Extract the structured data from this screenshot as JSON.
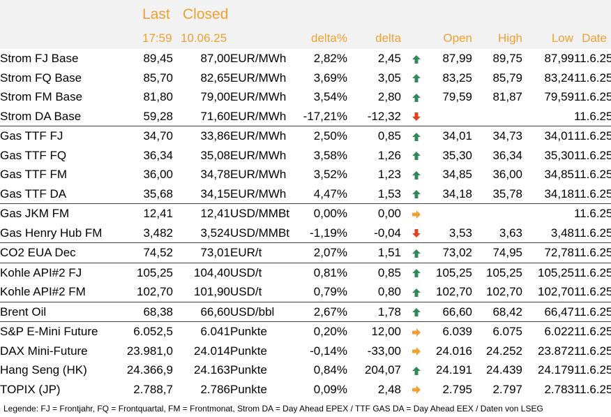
{
  "header": {
    "last_label": "Last",
    "closed_label": "Closed",
    "last_time": "17:59",
    "closed_date": "10.06.25",
    "delta_pct": "delta%",
    "delta": "delta",
    "open": "Open",
    "high": "High",
    "low": "Low",
    "date": "Date"
  },
  "colors": {
    "header_accent": "#f0a030",
    "up": "#2e8b57",
    "down": "#e0441e",
    "flat": "#f0a030"
  },
  "rows": [
    {
      "name": "Strom FJ Base",
      "last": "89,45",
      "closed": "87,00",
      "unit": "EUR/MWh",
      "delta_pct": "2,82%",
      "delta": "2,45",
      "trend": "up",
      "open": "87,99",
      "high": "89,75",
      "low": "87,99",
      "date": "11.6.25"
    },
    {
      "name": "Strom FQ Base",
      "last": "85,70",
      "closed": "82,65",
      "unit": "EUR/MWh",
      "delta_pct": "3,69%",
      "delta": "3,05",
      "trend": "up",
      "open": "83,25",
      "high": "85,79",
      "low": "83,24",
      "date": "11.6.25"
    },
    {
      "name": "Strom FM Base",
      "last": "81,80",
      "closed": "79,00",
      "unit": "EUR/MWh",
      "delta_pct": "3,54%",
      "delta": "2,80",
      "trend": "up",
      "open": "79,59",
      "high": "81,87",
      "low": "79,59",
      "date": "11.6.25"
    },
    {
      "name": "Strom DA Base",
      "last": "59,28",
      "closed": "71,60",
      "unit": "EUR/MWh",
      "delta_pct": "-17,21%",
      "delta": "-12,32",
      "trend": "down",
      "open": "",
      "high": "",
      "low": "",
      "date": "11.6.25"
    },
    {
      "name": "Gas TTF FJ",
      "last": "34,70",
      "closed": "33,86",
      "unit": "EUR/MWh",
      "delta_pct": "2,50%",
      "delta": "0,85",
      "trend": "up",
      "open": "34,01",
      "high": "34,73",
      "low": "34,01",
      "date": "11.6.25",
      "sep": true
    },
    {
      "name": "Gas TTF FQ",
      "last": "36,34",
      "closed": "35,08",
      "unit": "EUR/MWh",
      "delta_pct": "3,58%",
      "delta": "1,26",
      "trend": "up",
      "open": "35,30",
      "high": "36,34",
      "low": "35,30",
      "date": "11.6.25"
    },
    {
      "name": "Gas TTF FM",
      "last": "36,00",
      "closed": "34,78",
      "unit": "EUR/MWh",
      "delta_pct": "3,52%",
      "delta": "1,23",
      "trend": "up",
      "open": "34,85",
      "high": "36,00",
      "low": "34,85",
      "date": "11.6.25"
    },
    {
      "name": "Gas TTF DA",
      "last": "35,68",
      "closed": "34,15",
      "unit": "EUR/MWh",
      "delta_pct": "4,47%",
      "delta": "1,53",
      "trend": "up",
      "open": "34,18",
      "high": "35,78",
      "low": "34,18",
      "date": "11.6.25"
    },
    {
      "name": "Gas JKM FM",
      "last": "12,41",
      "closed": "12,41",
      "unit": "USD/MMBtu",
      "delta_pct": "0,00%",
      "delta": "0,00",
      "trend": "flat",
      "open": "",
      "high": "",
      "low": "",
      "date": "11.6.25",
      "sep": true
    },
    {
      "name": "Gas Henry Hub FM",
      "last": "3,482",
      "closed": "3,524",
      "unit": "USD/MMBtu",
      "delta_pct": "-1,19%",
      "delta": "-0,04",
      "trend": "down",
      "open": "3,53",
      "high": "3,63",
      "low": "3,48",
      "date": "11.6.25"
    },
    {
      "name": "CO2 EUA Dec",
      "last": "74,52",
      "closed": "73,01",
      "unit": "EUR/t",
      "delta_pct": "2,07%",
      "delta": "1,51",
      "trend": "up",
      "open": "73,02",
      "high": "74,95",
      "low": "72,78",
      "date": "11.6.25",
      "sep": true
    },
    {
      "name": "Kohle API#2 FJ",
      "last": "105,25",
      "closed": "104,40",
      "unit": "USD/t",
      "delta_pct": "0,81%",
      "delta": "0,85",
      "trend": "up",
      "open": "105,25",
      "high": "105,25",
      "low": "105,25",
      "date": "11.6.25",
      "sep": true
    },
    {
      "name": "Kohle API#2 FM",
      "last": "102,70",
      "closed": "101,90",
      "unit": "USD/t",
      "delta_pct": "0,79%",
      "delta": "0,80",
      "trend": "up",
      "open": "102,70",
      "high": "102,70",
      "low": "102,70",
      "date": "11.6.25"
    },
    {
      "name": "Brent Oil",
      "last": "68,38",
      "closed": "66,60",
      "unit": "USD/bbl",
      "delta_pct": "2,67%",
      "delta": "1,78",
      "trend": "up",
      "open": "66,60",
      "high": "68,42",
      "low": "66,47",
      "date": "11.6.25",
      "sep": true
    },
    {
      "name": "S&P E-Mini Future",
      "last": "6.052,5",
      "closed": "6.041",
      "unit": "Punkte",
      "delta_pct": "0,20%",
      "delta": "12,00",
      "trend": "flat",
      "open": "6.039",
      "high": "6.075",
      "low": "6.022",
      "date": "11.6.25",
      "sep": true
    },
    {
      "name": "DAX Mini-Future",
      "last": "23.981,0",
      "closed": "24.014",
      "unit": "Punkte",
      "delta_pct": "-0,14%",
      "delta": "-33,00",
      "trend": "flat",
      "open": "24.016",
      "high": "24.252",
      "low": "23.872",
      "date": "11.6.25"
    },
    {
      "name": "Hang Seng (HK)",
      "last": "24.366,9",
      "closed": "24.163",
      "unit": "Punkte",
      "delta_pct": "0,84%",
      "delta": "204,07",
      "trend": "up",
      "open": "24.191",
      "high": "24.439",
      "low": "24.179",
      "date": "11.6.25"
    },
    {
      "name": "TOPIX (JP)",
      "last": "2.788,7",
      "closed": "2.786",
      "unit": "Punkte",
      "delta_pct": "0,09%",
      "delta": "2,48",
      "trend": "flat",
      "open": "2.795",
      "high": "2.797",
      "low": "2.783",
      "date": "11.6.25"
    }
  ],
  "legend": "Legende: FJ = Frontjahr, FQ = Frontquartal, FM = Frontmonat, Strom DA = Day Ahead EPEX / TTF GAS DA = Day Ahead EEX / Daten von LSEG"
}
